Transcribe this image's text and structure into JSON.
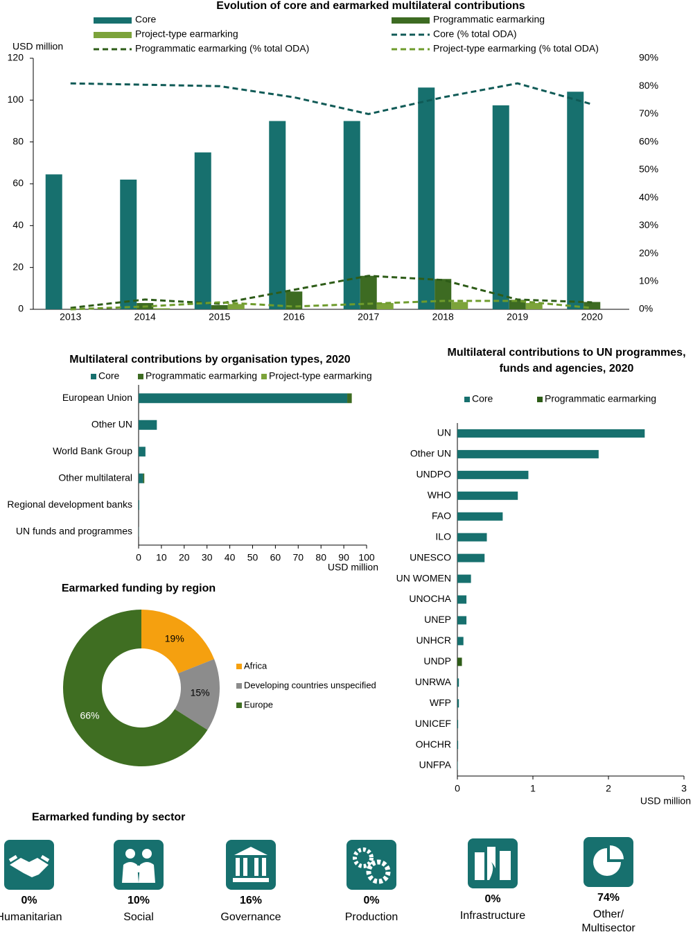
{
  "chart_data": [
    {
      "type": "bar",
      "title": "Evolution of core and earmarked multilateral contributions",
      "y_label": "USD million",
      "categories": [
        "2013",
        "2014",
        "2015",
        "2016",
        "2017",
        "2018",
        "2019",
        "2020"
      ],
      "series": [
        {
          "name": "Core",
          "color": "#17706e",
          "values": [
            64.5,
            62,
            75,
            90,
            90,
            106,
            97.5,
            104
          ]
        },
        {
          "name": "Programmatic earmarking",
          "color": "#3d6b22",
          "values": [
            0,
            3,
            2,
            8.5,
            16,
            14.5,
            4.5,
            3.5
          ]
        },
        {
          "name": "Project-type earmarking",
          "color": "#7ca33a",
          "values": [
            0,
            0.5,
            2.5,
            0,
            3,
            3.5,
            3,
            0
          ]
        },
        {
          "name": "Core (% total ODA)",
          "type": "line",
          "axis": "y2",
          "dashed": true,
          "color": "#0f5a56",
          "values": [
            81,
            80.5,
            80,
            76,
            70,
            76,
            81,
            73.5
          ]
        },
        {
          "name": "Programmatic earmarking (% total ODA)",
          "type": "line",
          "axis": "y2",
          "dashed": true,
          "color": "#2e5c18",
          "values": [
            0.5,
            3.5,
            2,
            7,
            12,
            10.5,
            3.5,
            2.5
          ]
        },
        {
          "name": "Project-type earmarking (% total ODA)",
          "type": "line",
          "axis": "y2",
          "dashed": true,
          "color": "#6e9b2c",
          "values": [
            0,
            1,
            2.5,
            1,
            2,
            3,
            3,
            0.5
          ]
        }
      ],
      "ylim": [
        0,
        120
      ],
      "yticks": [
        0,
        20,
        40,
        60,
        80,
        100,
        120
      ],
      "y2lim": [
        0,
        90
      ],
      "y2ticks": [
        {
          "value": 0,
          "label": "0%"
        },
        {
          "value": 10,
          "label": "10%"
        },
        {
          "value": 20,
          "label": "20%"
        },
        {
          "value": 30,
          "label": "30%"
        },
        {
          "value": 40,
          "label": "40%"
        },
        {
          "value": 50,
          "label": "50%"
        },
        {
          "value": 60,
          "label": "60%"
        },
        {
          "value": 70,
          "label": "70%"
        },
        {
          "value": 80,
          "label": "80%"
        },
        {
          "value": 90,
          "label": "90%"
        }
      ]
    },
    {
      "type": "hbar",
      "stacked": true,
      "title": "Multilateral contributions by organisation types, 2020",
      "x_label": "USD million",
      "categories": [
        "European Union",
        "Other UN",
        "World Bank Group",
        "Other multilateral",
        "Regional development banks",
        "UN funds and programmes"
      ],
      "series": [
        {
          "name": "Core",
          "color": "#17706e",
          "values": [
            91.5,
            8,
            3,
            2,
            0.3,
            0.1
          ]
        },
        {
          "name": "Programmatic earmarking",
          "color": "#3d6b22",
          "values": [
            2,
            0,
            0,
            0.5,
            0,
            0
          ]
        },
        {
          "name": "Project-type earmarking",
          "color": "#7ca33a",
          "values": [
            0,
            0,
            0,
            0,
            0,
            0
          ]
        }
      ],
      "xlim": [
        0,
        100
      ],
      "xticks": [
        0,
        10,
        20,
        30,
        40,
        50,
        60,
        70,
        80,
        90,
        100
      ]
    },
    {
      "type": "donut",
      "title": "Earmarked funding by region",
      "categories": [
        "Africa",
        "Developing countries unspecified",
        "Europe"
      ],
      "values": [
        19,
        15,
        66
      ],
      "value_labels": [
        "19%",
        "15%",
        "66%"
      ],
      "colors": [
        "#f5a00f",
        "#8c8c8c",
        "#3f6e22"
      ]
    },
    {
      "type": "hbar",
      "stacked": true,
      "title": "Multilateral contributions to UN programmes, funds and agencies, 2020",
      "x_label": "USD million",
      "categories": [
        "UN",
        "Other UN",
        "UNDPO",
        "WHO",
        "FAO",
        "ILO",
        "UNESCO",
        "UN WOMEN",
        "UNOCHA",
        "UNEP",
        "UNHCR",
        "UNDP",
        "UNRWA",
        "WFP",
        "UNICEF",
        "OHCHR",
        "UNFPA"
      ],
      "series": [
        {
          "name": "Core",
          "color": "#17706e",
          "values": [
            2.48,
            1.87,
            0.94,
            0.8,
            0.6,
            0.39,
            0.36,
            0.18,
            0.12,
            0.12,
            0.08,
            0,
            0.02,
            0.02,
            0.01,
            0.01,
            0.005
          ]
        },
        {
          "name": "Programmatic earmarking",
          "color": "#2e5c18",
          "values": [
            0,
            0,
            0,
            0,
            0,
            0,
            0,
            0,
            0,
            0,
            0,
            0.06,
            0,
            0,
            0,
            0,
            0
          ]
        }
      ],
      "xlim": [
        0,
        3
      ],
      "xticks": [
        0,
        1,
        2,
        3
      ]
    }
  ],
  "sector_funding": {
    "title": "Earmarked funding by sector",
    "items": [
      {
        "share": "0%",
        "label": "Humanitarian"
      },
      {
        "share": "10%",
        "label": "Social"
      },
      {
        "share": "16%",
        "label": "Governance"
      },
      {
        "share": "0%",
        "label": "Production"
      },
      {
        "share": "0%",
        "label": "Infrastructure"
      },
      {
        "share": "74%",
        "label": "Other/ Multisector"
      }
    ]
  }
}
